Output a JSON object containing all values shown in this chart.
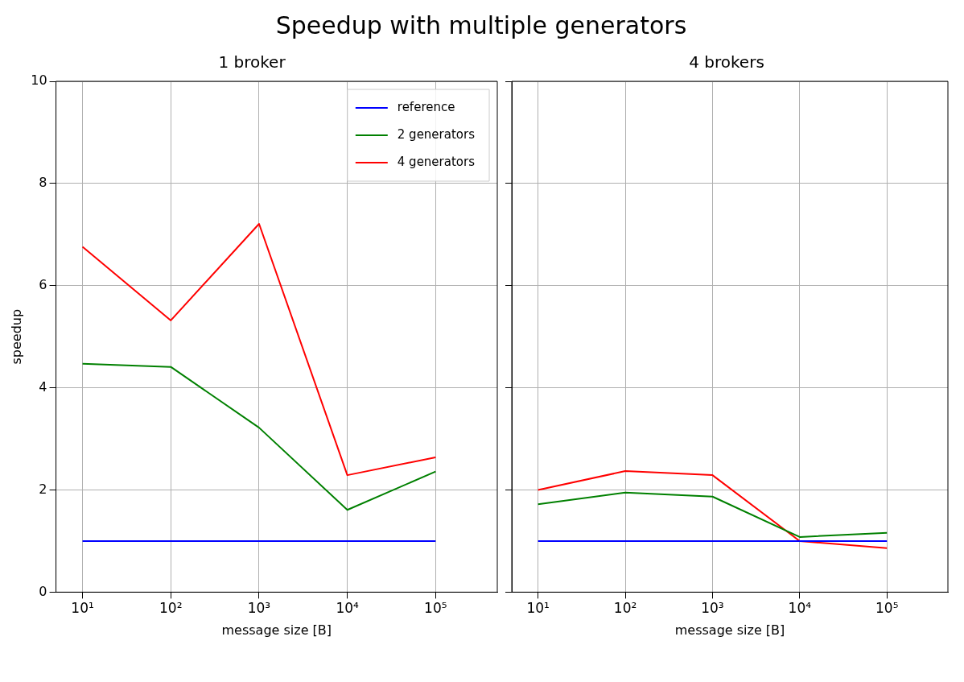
{
  "chart_data": [
    {
      "type": "line",
      "title": "Speedup with multiple generators",
      "subtitle": "1 broker",
      "xlabel": "message size [B]",
      "ylabel": "speedup",
      "log": "x",
      "grid": true,
      "legend": "top right",
      "marker": "none",
      "line_style": "solid",
      "xlim": [
        5,
        500000
      ],
      "xticks": [
        {
          "value": 10,
          "label": "10¹"
        },
        {
          "value": 100,
          "label": "10²"
        },
        {
          "value": 1000,
          "label": "10³"
        },
        {
          "value": 10000,
          "label": "10⁴"
        },
        {
          "value": 100000,
          "label": "10⁵"
        }
      ],
      "ylim": [
        0,
        10
      ],
      "yticks": [
        0,
        2,
        4,
        6,
        8,
        10
      ],
      "x": [
        10,
        100,
        1000,
        10000,
        100000
      ],
      "series": [
        {
          "name": "reference",
          "color": "#0000ff",
          "values": [
            1,
            1,
            1,
            1,
            1
          ]
        },
        {
          "name": "2 generators",
          "color": "#008000",
          "values": [
            4.47,
            4.41,
            3.22,
            1.61,
            2.36
          ]
        },
        {
          "name": "4 generators",
          "color": "#ff0000",
          "values": [
            6.76,
            5.32,
            7.21,
            2.29,
            2.64
          ]
        }
      ]
    },
    {
      "type": "line",
      "subtitle": "4 brokers",
      "xlabel": "message size [B]",
      "log": "x",
      "grid": true,
      "marker": "none",
      "line_style": "solid",
      "tick_labels": "x",
      "xlim": [
        5,
        500000
      ],
      "xticks": [
        {
          "value": 10,
          "label": "10¹"
        },
        {
          "value": 100,
          "label": "10²"
        },
        {
          "value": 1000,
          "label": "10³"
        },
        {
          "value": 10000,
          "label": "10⁴"
        },
        {
          "value": 100000,
          "label": "10⁵"
        }
      ],
      "ylim": [
        0,
        10
      ],
      "yticks": [
        0,
        2,
        4,
        6,
        8,
        10
      ],
      "x": [
        10,
        100,
        1000,
        10000,
        100000
      ],
      "series": [
        {
          "color": "#0000ff",
          "values": [
            1,
            1,
            1,
            1,
            1
          ]
        },
        {
          "color": "#008000",
          "values": [
            1.72,
            1.95,
            1.87,
            1.08,
            1.16
          ]
        },
        {
          "color": "#ff0000",
          "values": [
            2.0,
            2.37,
            2.29,
            1.0,
            0.86
          ]
        }
      ]
    }
  ]
}
